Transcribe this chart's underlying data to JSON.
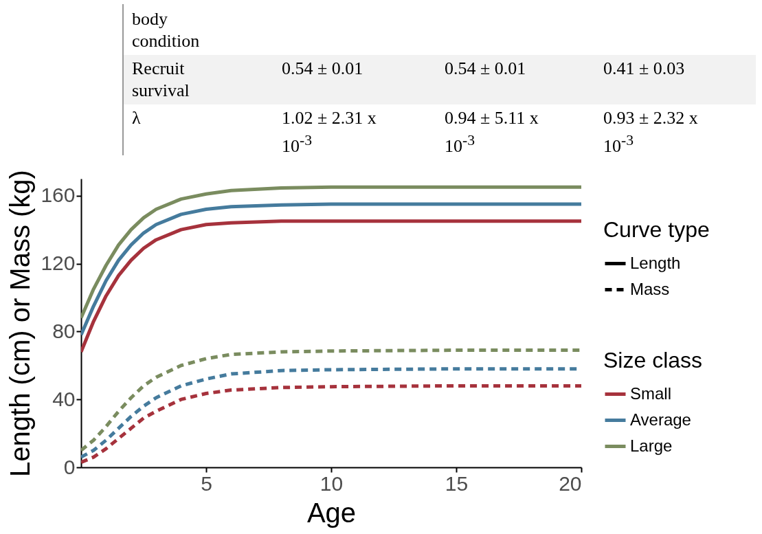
{
  "chart_data": {
    "type": "line",
    "xlabel": "Age",
    "ylabel": "Length (cm) or Mass (kg)",
    "legend_title": [
      "Curve type",
      "Size class"
    ],
    "annotations": [
      "Length",
      "Mass",
      "body condition",
      "Recruit survival",
      "0.54 ± 0.01",
      "0.54 ± 0.01",
      "0.41 ± 0.03",
      "λ",
      "1.02 ± 2.31 x 10$^{-3}$",
      "0.94 ± 5.11 x 10$^{-3}$",
      "0.93 ± 2.32 x 10$^{-3}$"
    ],
    "x": [
      0,
      0.5,
      1,
      1.5,
      2,
      2.5,
      3,
      4,
      5,
      6,
      8,
      10,
      15,
      20
    ],
    "series": [
      {
        "name": "Small",
        "line_style": "solid",
        "color": "#a6323c",
        "values": [
          68,
          86,
          101,
          113,
          122,
          129,
          134,
          140,
          143,
          144,
          145,
          145,
          145,
          145
        ]
      },
      {
        "name": "Average",
        "line_style": "solid",
        "color": "#457b9d",
        "values": [
          78,
          95,
          110,
          122,
          131,
          138,
          143,
          149,
          152,
          153.5,
          154.5,
          155,
          155,
          155
        ]
      },
      {
        "name": "Large",
        "line_style": "solid",
        "color": "#7a8c5f",
        "values": [
          88,
          105,
          119,
          131,
          140,
          147,
          152,
          158,
          161,
          163,
          164.5,
          165,
          165,
          165
        ]
      },
      {
        "line_style": "dashed",
        "color": "#a6323c",
        "values": [
          3,
          6,
          11,
          17,
          23,
          29,
          33,
          40,
          43.5,
          45.5,
          47,
          47.5,
          48,
          48
        ]
      },
      {
        "line_style": "dashed",
        "color": "#457b9d",
        "values": [
          6,
          10,
          16,
          23,
          30,
          36,
          41,
          48,
          52,
          55,
          57,
          57.5,
          58,
          58
        ]
      },
      {
        "line_style": "dashed",
        "color": "#7a8c5f",
        "values": [
          10,
          16,
          24,
          33,
          41,
          48,
          53,
          60,
          64,
          66.5,
          68,
          68.5,
          69,
          69
        ]
      }
    ],
    "xlim": [
      0,
      20
    ],
    "xticks": [
      5,
      10,
      15,
      20
    ],
    "ylim": [
      0,
      170
    ],
    "yticks": [
      0,
      40,
      80,
      120,
      160
    ],
    "grid": false,
    "legend": "right"
  }
}
